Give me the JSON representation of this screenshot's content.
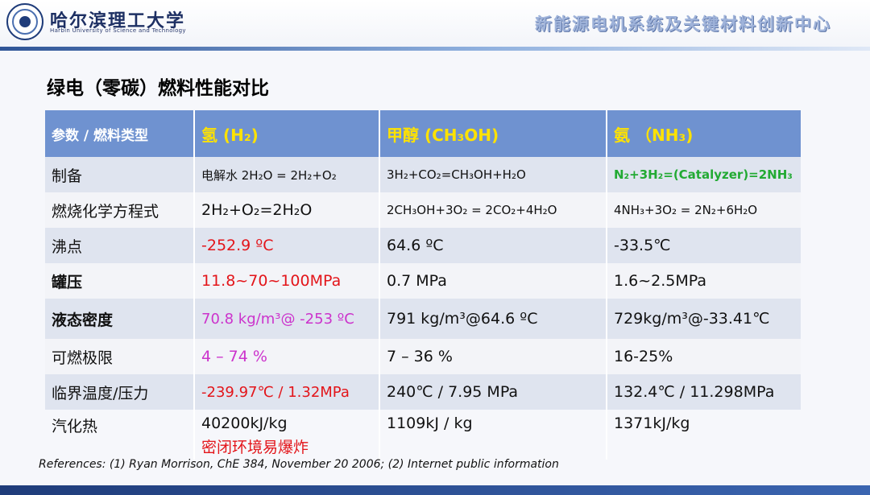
{
  "header": {
    "university_cn": "哈尔滨理工大学",
    "university_en": "Harbin University of Science and Technology",
    "center_name": "新能源电机系统及关键材料创新中心"
  },
  "slide": {
    "title": "绿电（零碳）燃料性能对比"
  },
  "table": {
    "columns": [
      "参数 / 燃料类型",
      "氢 (H₂)",
      "甲醇 (CH₃OH)",
      "氨 （NH₃)"
    ],
    "rows": [
      {
        "param": "制备",
        "h2": "电解水 2H₂O = 2H₂+O₂",
        "ch3oh": "3H₂+CO₂=CH₃OH+H₂O",
        "nh3": "N₂+3H₂=(Catalyzer)=2NH₃"
      },
      {
        "param": "燃烧化学方程式",
        "h2": "2H₂+O₂=2H₂O",
        "ch3oh": "2CH₃OH+3O₂ = 2CO₂+4H₂O",
        "nh3": "4NH₃+3O₂ = 2N₂+6H₂O"
      },
      {
        "param": "沸点",
        "h2": "-252.9 ºC",
        "ch3oh": "64.6 ºC",
        "nh3": "-33.5℃"
      },
      {
        "param": "罐压",
        "h2": "11.8~70~100MPa",
        "ch3oh": "0.7 MPa",
        "nh3": "1.6~2.5MPa"
      },
      {
        "param": "液态密度",
        "h2": "70.8 kg/m³@ -253 ºC",
        "ch3oh": "791 kg/m³@64.6 ºC",
        "nh3": "729kg/m³@-33.41℃"
      },
      {
        "param": "可燃极限",
        "h2": "4 – 74 %",
        "ch3oh": "7 – 36 %",
        "nh3": "16-25%"
      },
      {
        "param": "临界温度/压力",
        "h2": "-239.97℃ / 1.32MPa",
        "ch3oh": "240℃ / 7.95 MPa",
        "nh3": "132.4℃ / 11.298MPa"
      },
      {
        "param": "汽化热",
        "h2": "40200kJ/kg",
        "h2_note": "密闭环境易爆炸",
        "ch3oh": "1109kJ / kg",
        "nh3": "1371kJ/kg"
      }
    ]
  },
  "references": "References: (1) Ryan Morrison, ChE 384, November 20 2006;  (2) Internet public information",
  "colors": {
    "header_row": "#6f92d0",
    "header_text": "#ffe200",
    "highlight_red": "#e3151a",
    "highlight_magenta": "#cc33cc",
    "highlight_green": "#22aa33"
  }
}
